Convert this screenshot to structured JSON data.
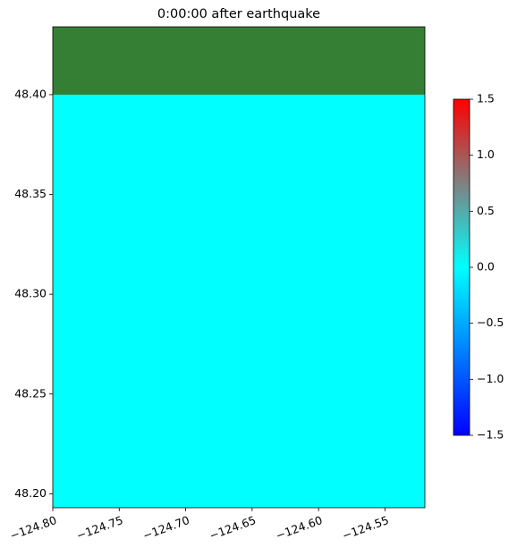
{
  "chart_data": {
    "type": "heatmap",
    "title": "0:00:00 after earthquake",
    "xlim": [
      -124.8,
      -124.52
    ],
    "xticks": [
      {
        "value": -124.8,
        "label": "−124.80"
      },
      {
        "value": -124.75,
        "label": "−124.75"
      },
      {
        "value": -124.7,
        "label": "−124.70"
      },
      {
        "value": -124.65,
        "label": "−124.65"
      },
      {
        "value": -124.6,
        "label": "−124.60"
      },
      {
        "value": -124.55,
        "label": "−124.55"
      }
    ],
    "ylim": [
      48.193,
      48.434
    ],
    "yticks": [
      {
        "value": 48.2,
        "label": "48.20"
      },
      {
        "value": 48.25,
        "label": "48.25"
      },
      {
        "value": 48.3,
        "label": "48.30"
      },
      {
        "value": 48.35,
        "label": "48.35"
      },
      {
        "value": 48.4,
        "label": "48.40"
      }
    ],
    "water_value": 0,
    "land_south": 48.4,
    "land_color": "#357f35",
    "colormap": [
      "#0000ff",
      "#0080ff",
      "#00ffff",
      "#808080",
      "#ff0000"
    ],
    "clim": [
      -1.5,
      1.5
    ],
    "cticks": [
      {
        "value": -1.5,
        "label": "−1.5"
      },
      {
        "value": -1,
        "label": "−1.0"
      },
      {
        "value": -0.5,
        "label": "−0.5"
      },
      {
        "value": 0,
        "label": "0.0"
      },
      {
        "value": 0.5,
        "label": "0.5"
      },
      {
        "value": 1,
        "label": "1.0"
      },
      {
        "value": 1.5,
        "label": "1.5"
      }
    ]
  }
}
